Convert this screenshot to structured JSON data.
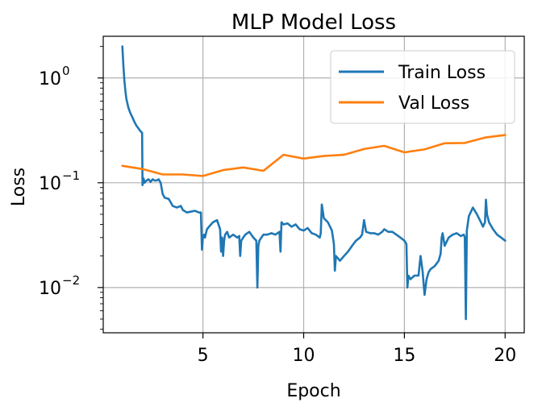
{
  "chart_data": {
    "type": "line",
    "title": "MLP Model Loss",
    "xlabel": "Epoch",
    "ylabel": "Loss",
    "yscale": "log",
    "xlim": [
      0.05,
      20.95
    ],
    "ylim": [
      0.0037,
      2.5
    ],
    "grid": true,
    "legend_position": "top-right",
    "x_ticks": [
      {
        "value": 5,
        "label": "5"
      },
      {
        "value": 10,
        "label": "10"
      },
      {
        "value": 15,
        "label": "15"
      },
      {
        "value": 20,
        "label": "20"
      }
    ],
    "y_ticks": [
      {
        "value": 1,
        "base": "10",
        "exp": "0"
      },
      {
        "value": 0.1,
        "base": "10",
        "exp": "−1"
      },
      {
        "value": 0.01,
        "base": "10",
        "exp": "−2"
      }
    ],
    "series": [
      {
        "name": "Train Loss",
        "color": "#1f77b4",
        "x": [
          1.0,
          1.05,
          1.1,
          1.15,
          1.2,
          1.3,
          1.4,
          1.5,
          1.6,
          1.7,
          1.8,
          1.9,
          1.98,
          2.0,
          2.05,
          2.1,
          2.2,
          2.3,
          2.4,
          2.5,
          2.6,
          2.7,
          2.8,
          2.9,
          3.0,
          3.1,
          3.3,
          3.5,
          3.7,
          3.9,
          4.0,
          4.2,
          4.4,
          4.6,
          4.8,
          4.9,
          4.95,
          5.0,
          5.05,
          5.1,
          5.2,
          5.3,
          5.5,
          5.7,
          5.85,
          5.9,
          5.95,
          6.0,
          6.05,
          6.1,
          6.2,
          6.3,
          6.5,
          6.7,
          6.8,
          6.85,
          6.9,
          7.0,
          7.1,
          7.3,
          7.5,
          7.65,
          7.7,
          7.75,
          7.8,
          7.9,
          8.0,
          8.2,
          8.4,
          8.6,
          8.8,
          8.85,
          8.9,
          9.0,
          9.2,
          9.4,
          9.6,
          9.8,
          10.0,
          10.2,
          10.4,
          10.6,
          10.8,
          10.85,
          10.9,
          11.0,
          11.2,
          11.4,
          11.5,
          11.55,
          11.6,
          11.8,
          12.0,
          12.2,
          12.4,
          12.6,
          12.8,
          12.9,
          13.0,
          13.1,
          13.3,
          13.5,
          13.7,
          13.9,
          14.0,
          14.2,
          14.4,
          14.6,
          14.8,
          15.0,
          15.1,
          15.15,
          15.2,
          15.3,
          15.5,
          15.7,
          15.8,
          15.9,
          16.0,
          16.1,
          16.2,
          16.3,
          16.5,
          16.7,
          16.8,
          16.85,
          16.9,
          17.0,
          17.2,
          17.4,
          17.6,
          17.8,
          17.95,
          18.0,
          18.05,
          18.1,
          18.2,
          18.4,
          18.6,
          18.8,
          18.9,
          19.0,
          19.05,
          19.1,
          19.2,
          19.4,
          19.6,
          19.8,
          20.0
        ],
        "y": [
          2.0,
          1.3,
          0.95,
          0.75,
          0.63,
          0.52,
          0.46,
          0.42,
          0.38,
          0.35,
          0.33,
          0.31,
          0.3,
          0.095,
          0.11,
          0.1,
          0.105,
          0.108,
          0.102,
          0.108,
          0.105,
          0.105,
          0.108,
          0.1,
          0.078,
          0.072,
          0.07,
          0.06,
          0.058,
          0.06,
          0.055,
          0.052,
          0.053,
          0.054,
          0.052,
          0.052,
          0.023,
          0.03,
          0.032,
          0.03,
          0.036,
          0.038,
          0.042,
          0.044,
          0.036,
          0.022,
          0.03,
          0.02,
          0.028,
          0.032,
          0.034,
          0.03,
          0.032,
          0.03,
          0.031,
          0.02,
          0.028,
          0.03,
          0.032,
          0.034,
          0.03,
          0.028,
          0.01,
          0.025,
          0.028,
          0.03,
          0.032,
          0.032,
          0.033,
          0.032,
          0.034,
          0.022,
          0.042,
          0.04,
          0.041,
          0.038,
          0.04,
          0.036,
          0.035,
          0.037,
          0.033,
          0.032,
          0.03,
          0.033,
          0.062,
          0.046,
          0.042,
          0.035,
          0.026,
          0.0145,
          0.02,
          0.018,
          0.02,
          0.022,
          0.025,
          0.028,
          0.03,
          0.032,
          0.044,
          0.034,
          0.033,
          0.033,
          0.032,
          0.034,
          0.036,
          0.034,
          0.034,
          0.032,
          0.03,
          0.028,
          0.026,
          0.01,
          0.013,
          0.012,
          0.013,
          0.013,
          0.02,
          0.0145,
          0.0085,
          0.012,
          0.014,
          0.015,
          0.016,
          0.018,
          0.021,
          0.03,
          0.033,
          0.025,
          0.03,
          0.032,
          0.033,
          0.031,
          0.032,
          0.03,
          0.005,
          0.035,
          0.048,
          0.058,
          0.05,
          0.042,
          0.038,
          0.042,
          0.069,
          0.05,
          0.042,
          0.036,
          0.032,
          0.03,
          0.028
        ]
      },
      {
        "name": "Val Loss",
        "color": "#ff7f0e",
        "x": [
          1,
          2,
          3,
          4,
          5,
          6,
          7,
          8,
          9,
          10,
          11,
          12,
          13,
          14,
          15,
          16,
          17,
          18,
          19,
          20
        ],
        "y": [
          0.145,
          0.135,
          0.12,
          0.12,
          0.116,
          0.132,
          0.14,
          0.13,
          0.185,
          0.17,
          0.18,
          0.185,
          0.21,
          0.225,
          0.195,
          0.208,
          0.238,
          0.24,
          0.27,
          0.285
        ]
      }
    ]
  }
}
